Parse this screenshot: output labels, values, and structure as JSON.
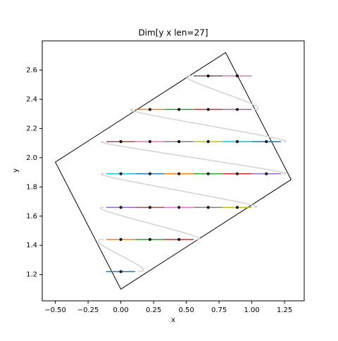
{
  "chart_data": {
    "type": "scatter",
    "title": "Dim[y x len=27]",
    "x_label": "x",
    "y_label": "y",
    "x": [
      0,
      0,
      0.222,
      0.444,
      0,
      0.222,
      0.444,
      0.667,
      0.889,
      0,
      0.222,
      0.444,
      0.667,
      0.889,
      1.111,
      0,
      0.222,
      0.444,
      0.667,
      0.889,
      1.111,
      0.222,
      0.444,
      0.667,
      0.889,
      0.667,
      0.889
    ],
    "y": [
      1.22,
      1.44,
      1.44,
      1.44,
      1.66,
      1.66,
      1.66,
      1.66,
      1.66,
      1.89,
      1.89,
      1.89,
      1.89,
      1.89,
      1.89,
      2.11,
      2.11,
      2.11,
      2.11,
      2.11,
      2.11,
      2.33,
      2.33,
      2.33,
      2.33,
      2.56,
      2.56
    ],
    "colors": [
      "#1f77b4",
      "#ff7f0e",
      "#2ca02c",
      "#d62728",
      "#9467bd",
      "#8c564b",
      "#e377c2",
      "#7f7f7f",
      "#bcbd22",
      "#17becf"
    ],
    "polygon": {
      "x": [
        0,
        1.3,
        0.8,
        -0.5
      ],
      "y": [
        1.1,
        1.85,
        2.72,
        1.97
      ]
    },
    "xlim": [
      -0.6,
      1.4
    ],
    "ylim": [
      1.02,
      2.8
    ],
    "xticks": [
      {
        "value": -0.5,
        "label": "−0.50"
      },
      {
        "value": -0.25,
        "label": "−0.25"
      },
      {
        "value": 0,
        "label": "0.00"
      },
      {
        "value": 0.25,
        "label": "0.25"
      },
      {
        "value": 0.5,
        "label": "0.50"
      },
      {
        "value": 0.75,
        "label": "0.75"
      },
      {
        "value": 1,
        "label": "1.00"
      },
      {
        "value": 1.25,
        "label": "1.25"
      }
    ],
    "yticks": [
      1.2,
      1.4,
      1.6,
      1.8,
      {
        "value": 2.0,
        "label": "2.0"
      },
      2.2,
      2.4,
      2.6
    ]
  }
}
